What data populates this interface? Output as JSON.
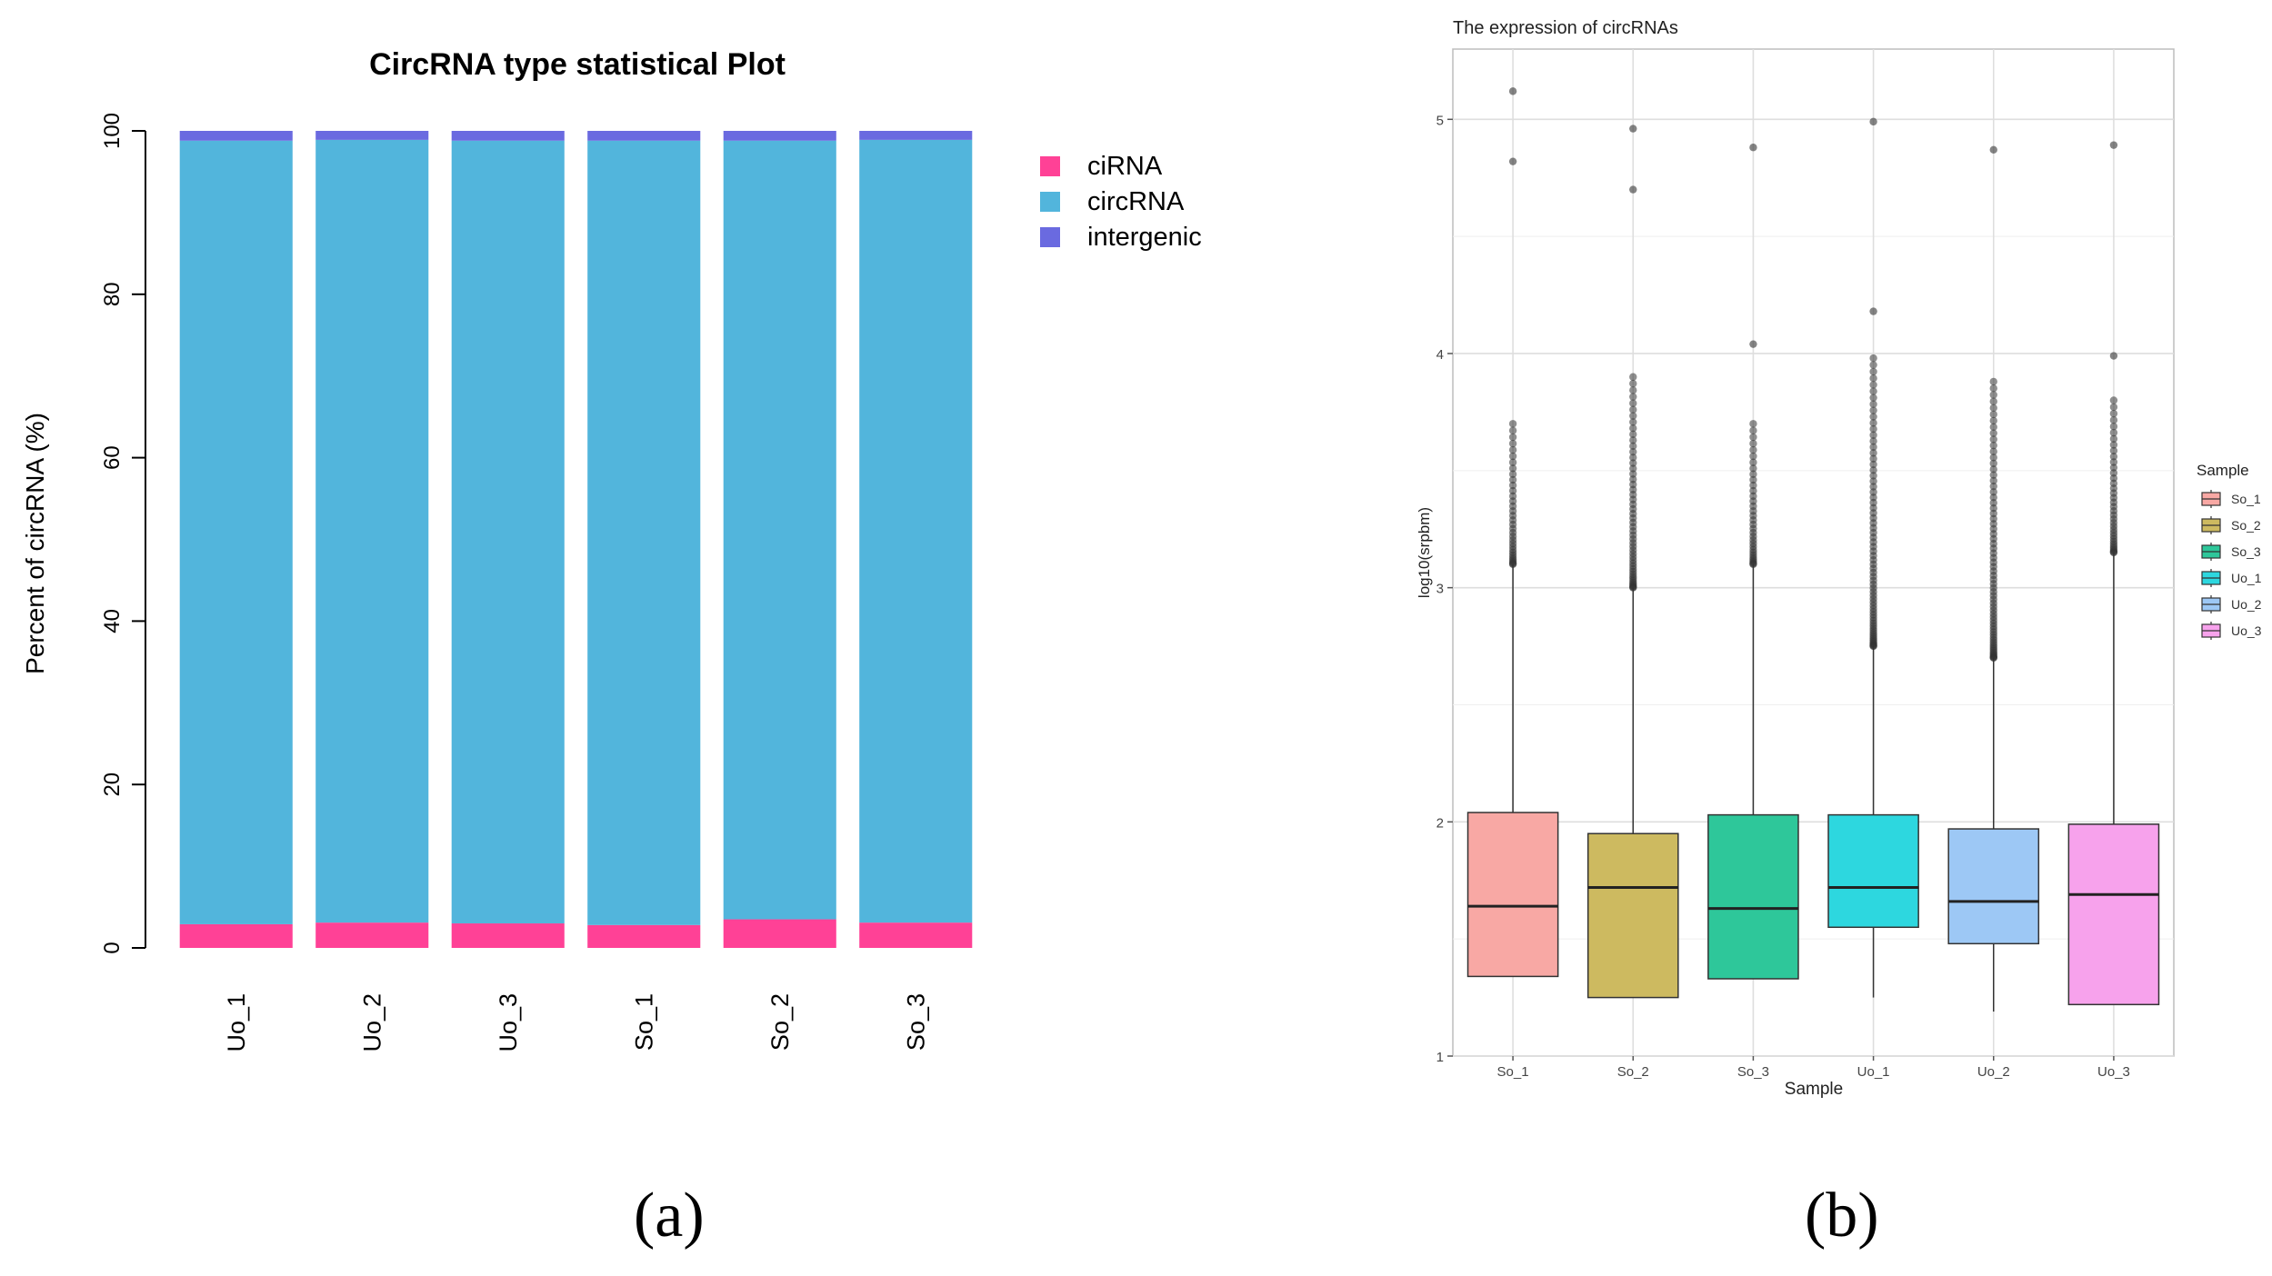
{
  "chart_data": [
    {
      "panel": "a",
      "type": "bar",
      "stacked": true,
      "title": "CircRNA type statistical Plot",
      "xlabel": "",
      "ylabel": "Percent of circRNA (%)",
      "ylim": [
        0,
        100
      ],
      "yticks": [
        0,
        20,
        40,
        60,
        80,
        100
      ],
      "categories": [
        "Uo_1",
        "Uo_2",
        "Uo_3",
        "So_1",
        "So_2",
        "So_3"
      ],
      "series": [
        {
          "name": "ciRNA",
          "color": "#FF4196",
          "values": [
            2.9,
            3.1,
            3.0,
            2.8,
            3.5,
            3.1
          ]
        },
        {
          "name": "circRNA",
          "color": "#52B5DC",
          "values": [
            95.9,
            95.8,
            95.8,
            96.0,
            95.3,
            95.8
          ]
        },
        {
          "name": "intergenic",
          "color": "#6A6AE0",
          "values": [
            1.2,
            1.1,
            1.2,
            1.2,
            1.2,
            1.1
          ]
        }
      ],
      "legend_position": "top-right"
    },
    {
      "panel": "b",
      "type": "box",
      "title": "The expression of circRNAs",
      "xlabel": "Sample",
      "ylabel": "log10(srpbm)",
      "ylim": [
        1,
        5.3
      ],
      "yticks": [
        1,
        2,
        3,
        4,
        5
      ],
      "grid": true,
      "legend_title": "Sample",
      "legend_position": "right",
      "categories": [
        "So_1",
        "So_2",
        "So_3",
        "Uo_1",
        "Uo_2",
        "Uo_3"
      ],
      "series": [
        {
          "name": "So_1",
          "color": "#F8A8A4",
          "q1": 1.34,
          "median": 1.64,
          "q3": 2.04,
          "whisker_low": 1.34,
          "whisker_high": 3.1,
          "outlier_range": [
            3.1,
            3.7
          ],
          "outliers_extra": [
            5.12,
            4.82
          ]
        },
        {
          "name": "So_2",
          "color": "#CDBA60",
          "q1": 1.25,
          "median": 1.72,
          "q3": 1.95,
          "whisker_low": 1.25,
          "whisker_high": 3.0,
          "outlier_range": [
            3.0,
            3.9
          ],
          "outliers_extra": [
            4.96,
            4.7
          ]
        },
        {
          "name": "So_3",
          "color": "#2EC79A",
          "q1": 1.33,
          "median": 1.63,
          "q3": 2.03,
          "whisker_low": 1.33,
          "whisker_high": 3.1,
          "outlier_range": [
            3.1,
            3.7
          ],
          "outliers_extra": [
            4.88,
            4.04
          ]
        },
        {
          "name": "Uo_1",
          "color": "#2DD7DF",
          "q1": 1.55,
          "median": 1.72,
          "q3": 2.03,
          "whisker_low": 1.25,
          "whisker_high": 2.75,
          "outlier_range": [
            2.75,
            3.98
          ],
          "outliers_extra": [
            4.99,
            4.18
          ]
        },
        {
          "name": "Uo_2",
          "color": "#9DC8F5",
          "q1": 1.48,
          "median": 1.66,
          "q3": 1.97,
          "whisker_low": 1.19,
          "whisker_high": 2.7,
          "outlier_range": [
            2.7,
            3.88
          ],
          "outliers_extra": [
            4.87
          ]
        },
        {
          "name": "Uo_3",
          "color": "#F7A2EC",
          "q1": 1.22,
          "median": 1.69,
          "q3": 1.99,
          "whisker_low": 1.22,
          "whisker_high": 3.15,
          "outlier_range": [
            3.15,
            3.8
          ],
          "outliers_extra": [
            4.89,
            3.99
          ]
        }
      ]
    }
  ],
  "panel_labels": {
    "a": "(a)",
    "b": "(b)"
  }
}
